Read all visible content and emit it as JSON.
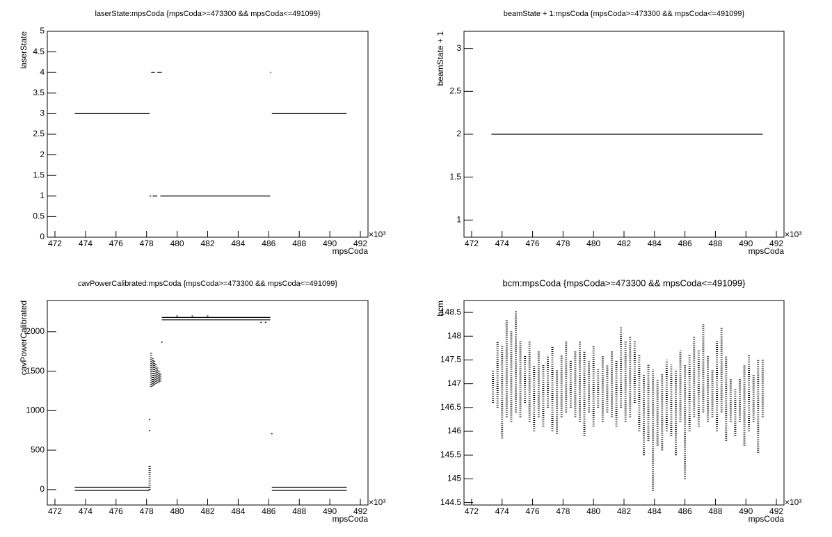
{
  "chart_data": [
    {
      "type": "scatter",
      "color": "#000000",
      "title": "laserState:mpsCoda {mpsCoda>=473300 && mpsCoda<=491099}",
      "xlabel": "mpsCoda",
      "ylabel": "laserState",
      "x_multiplier": "×10³",
      "xlim": [
        471.5,
        492.5
      ],
      "xticks": [
        472,
        474,
        476,
        478,
        480,
        482,
        484,
        486,
        488,
        490,
        492
      ],
      "ylim": [
        0,
        5
      ],
      "yticks": [
        0,
        0.5,
        1,
        1.5,
        2,
        2.5,
        3,
        3.5,
        4,
        4.5,
        5
      ],
      "segments": [
        {
          "x": [
            473.3,
            478.2
          ],
          "y": 3
        },
        {
          "x": [
            478.3,
            478.55
          ],
          "y": 4
        },
        {
          "x": [
            478.7,
            479.0
          ],
          "y": 4
        },
        {
          "x": [
            478.2,
            478.3
          ],
          "y": 1
        },
        {
          "x": [
            478.4,
            478.7
          ],
          "y": 1
        },
        {
          "x": [
            478.9,
            486.1
          ],
          "y": 1
        },
        {
          "x": [
            486.1,
            486.15
          ],
          "y": 4
        },
        {
          "x": [
            486.2,
            491.1
          ],
          "y": 3
        }
      ]
    },
    {
      "type": "scatter",
      "color": "#000000",
      "title": "beamState + 1:mpsCoda {mpsCoda>=473300 && mpsCoda<=491099}",
      "xlabel": "mpsCoda",
      "ylabel": "beamState + 1",
      "x_multiplier": "×10³",
      "xlim": [
        471.5,
        492.5
      ],
      "xticks": [
        472,
        474,
        476,
        478,
        480,
        482,
        484,
        486,
        488,
        490,
        492
      ],
      "ylim": [
        0.8,
        3.2
      ],
      "yticks": [
        1,
        1.5,
        2,
        2.5,
        3
      ],
      "segments": [
        {
          "x": [
            473.3,
            491.1
          ],
          "y": 2
        }
      ]
    },
    {
      "type": "scatter",
      "color": "#000000",
      "title": "cavPowerCalibrated:mpsCoda {mpsCoda>=473300 && mpsCoda<=491099}",
      "xlabel": "mpsCoda",
      "ylabel": "cavPowerCalibrated",
      "x_multiplier": "×10³",
      "xlim": [
        471.5,
        492.5
      ],
      "xticks": [
        472,
        474,
        476,
        478,
        480,
        482,
        484,
        486,
        488,
        490,
        492
      ],
      "ylim": [
        -195,
        2395
      ],
      "yticks": [
        0,
        500,
        1000,
        1500,
        2000
      ],
      "segments": [
        {
          "x": [
            473.3,
            478.2
          ],
          "y": 30
        },
        {
          "x": [
            473.3,
            478.2
          ],
          "y": -10
        },
        {
          "x": [
            479.0,
            486.1
          ],
          "y": 2180
        },
        {
          "x": [
            479.0,
            486.1
          ],
          "y": 2150
        },
        {
          "x": [
            486.2,
            491.1
          ],
          "y": 30
        },
        {
          "x": [
            486.2,
            491.1
          ],
          "y": -10
        }
      ],
      "points": {
        "x": [
          478.2,
          478.2,
          479.0,
          486.2,
          480.0,
          481.0,
          482.0,
          485.5,
          485.8
        ],
        "y": [
          750,
          890,
          1870,
          710,
          2200,
          2200,
          2200,
          2120,
          2120
        ]
      },
      "ranges": {
        "x": [
          478.2,
          478.3,
          478.4,
          478.5,
          478.6,
          478.7,
          478.8,
          478.9
        ],
        "ymin": [
          0,
          1300,
          1310,
          1330,
          1340,
          1350,
          1360,
          1370
        ],
        "ymax": [
          300,
          1750,
          1660,
          1640,
          1600,
          1560,
          1500,
          1480
        ]
      }
    },
    {
      "type": "scatter",
      "color": "#000000",
      "title": "bcm:mpsCoda {mpsCoda>=473300 && mpsCoda<=491099}",
      "xlabel": "mpsCoda",
      "ylabel": "bcm",
      "x_multiplier": "×10³",
      "xlim": [
        471.5,
        492.5
      ],
      "xticks": [
        472,
        474,
        476,
        478,
        480,
        482,
        484,
        486,
        488,
        490,
        492
      ],
      "ylim": [
        144.45,
        148.75
      ],
      "yticks": [
        144.5,
        145,
        145.5,
        146,
        146.5,
        147,
        147.5,
        148,
        148.5
      ],
      "ranges": {
        "x": [
          473.4,
          473.7,
          474.0,
          474.3,
          474.6,
          474.9,
          475.2,
          475.5,
          475.8,
          476.1,
          476.4,
          476.7,
          477.0,
          477.3,
          477.6,
          477.9,
          478.2,
          478.5,
          478.8,
          479.1,
          479.4,
          479.7,
          480.0,
          480.3,
          480.6,
          480.9,
          481.2,
          481.5,
          481.8,
          482.1,
          482.4,
          482.7,
          483.0,
          483.3,
          483.6,
          483.9,
          484.2,
          484.5,
          484.8,
          485.1,
          485.4,
          485.7,
          486.0,
          486.3,
          486.6,
          486.9,
          487.2,
          487.5,
          487.8,
          488.1,
          488.4,
          488.7,
          489.0,
          489.3,
          489.6,
          489.9,
          490.2,
          490.5,
          490.8,
          491.1
        ],
        "ymin": [
          146.6,
          146.5,
          145.85,
          146.3,
          146.2,
          146.4,
          146.3,
          146.6,
          146.2,
          146.0,
          146.3,
          146.1,
          146.5,
          146.0,
          145.95,
          146.3,
          146.4,
          146.5,
          146.3,
          146.2,
          145.9,
          146.4,
          146.1,
          146.5,
          146.2,
          146.4,
          146.3,
          146.1,
          146.5,
          146.2,
          146.3,
          146.6,
          146.0,
          145.5,
          145.8,
          144.75,
          145.7,
          145.6,
          146.0,
          145.9,
          145.5,
          146.2,
          145.0,
          146.0,
          146.3,
          146.1,
          146.4,
          146.2,
          146.3,
          146.0,
          146.4,
          145.8,
          146.2,
          145.9,
          146.2,
          145.7,
          146.0,
          146.2,
          145.55,
          146.3
        ],
        "ymax": [
          147.3,
          147.9,
          147.8,
          148.35,
          148.1,
          148.55,
          147.9,
          147.6,
          147.9,
          147.4,
          147.7,
          147.4,
          147.6,
          147.8,
          147.3,
          147.6,
          147.9,
          147.5,
          147.7,
          147.9,
          147.7,
          147.5,
          147.8,
          147.3,
          147.6,
          147.4,
          147.7,
          147.5,
          148.2,
          147.9,
          148.0,
          147.9,
          147.6,
          147.2,
          147.4,
          147.3,
          147.1,
          147.2,
          147.5,
          147.4,
          147.3,
          147.7,
          147.4,
          147.6,
          148.0,
          147.7,
          148.25,
          147.6,
          147.3,
          147.9,
          148.2,
          147.6,
          147.1,
          146.9,
          147.1,
          147.4,
          147.6,
          147.2,
          147.5,
          147.5
        ]
      }
    }
  ]
}
